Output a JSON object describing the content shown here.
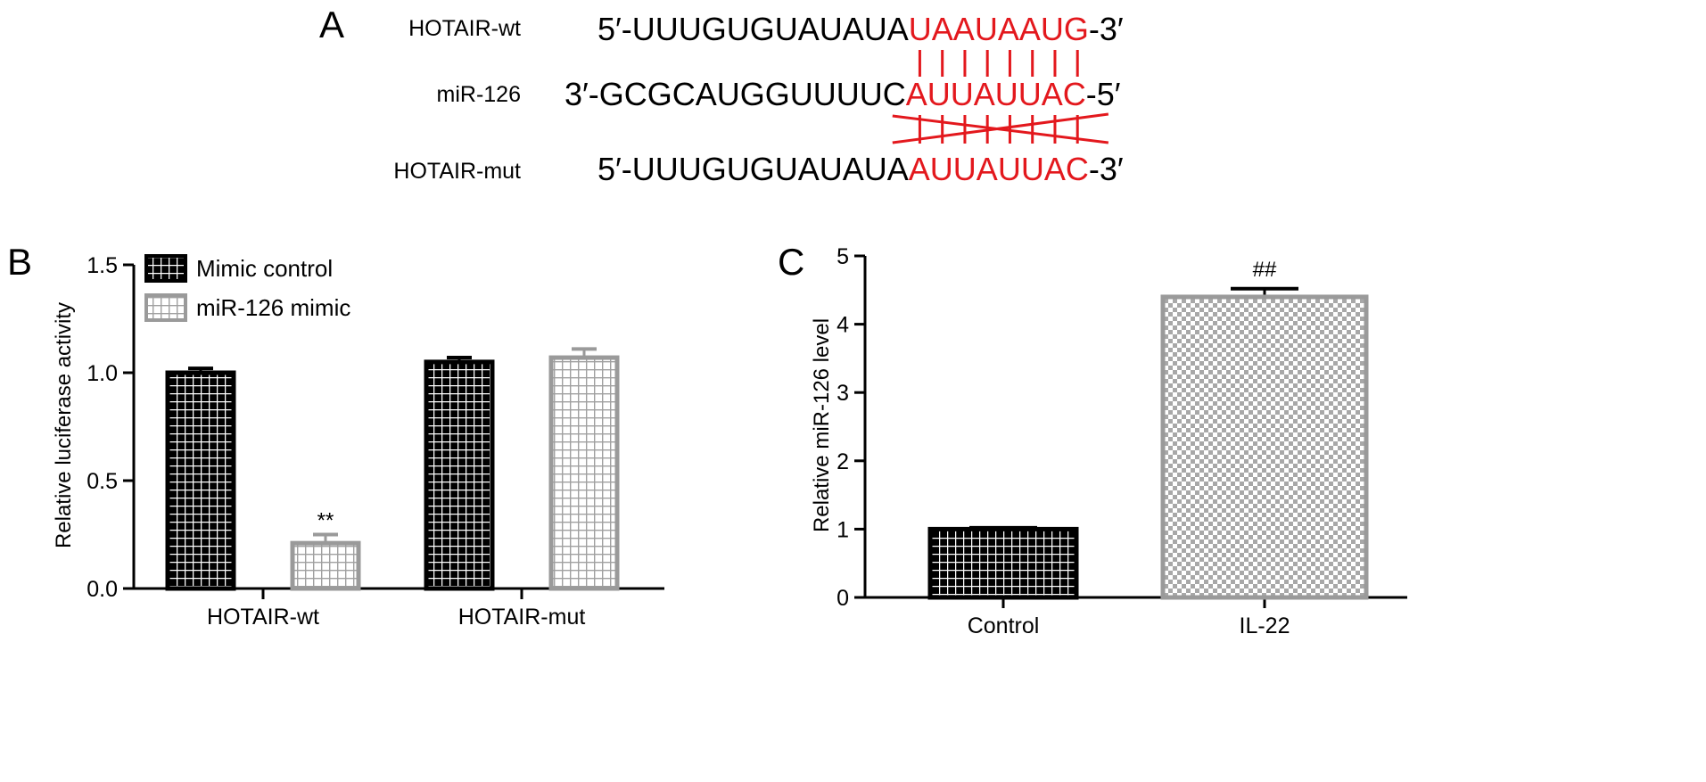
{
  "panel_a": {
    "letter": "A",
    "rows": [
      {
        "name": "HOTAIR-wt",
        "prefix": "5′-UUUGUGUAUAUA",
        "highlight": "UAAUAAUG",
        "suffix": "-3′"
      },
      {
        "name": "miR-126",
        "prefix": "3′-GCGCAUGGUUUUC",
        "highlight": "AUUAUUAC",
        "suffix": "-5′"
      },
      {
        "name": "HOTAIR-mut",
        "prefix": "5′-UUUGUGUAUAUA",
        "highlight": "AUUAUUAC",
        "suffix": "-3′"
      }
    ],
    "highlight_color": "#e3181d",
    "pair_lines": 8,
    "mut_crossed": true
  },
  "chart_data": [
    {
      "panel": "B",
      "type": "bar",
      "categories": [
        "HOTAIR-wt",
        "HOTAIR-mut"
      ],
      "series": [
        {
          "name": "Mimic control",
          "values": [
            1.0,
            1.05
          ],
          "errors": [
            0.02,
            0.02
          ],
          "color": "#000000",
          "pattern": "grid-white"
        },
        {
          "name": "miR-126 mimic",
          "values": [
            0.21,
            1.07
          ],
          "errors": [
            0.04,
            0.04
          ],
          "color": "#9a9a9a",
          "pattern": "grid-white"
        }
      ],
      "annotations": [
        {
          "category": "HOTAIR-wt",
          "series": "miR-126 mimic",
          "text": "**"
        }
      ],
      "ylabel": "Relative luciferase activity",
      "xlabel": "",
      "ylim": [
        0,
        1.5
      ],
      "yticks": [
        "0.0",
        "0.5",
        "1.0",
        "1.5"
      ],
      "legend": "top-left",
      "grid": false
    },
    {
      "panel": "C",
      "type": "bar",
      "categories": [
        "Control",
        "IL-22"
      ],
      "values": [
        1.0,
        4.4
      ],
      "errors": [
        0.02,
        0.12
      ],
      "colors": [
        "#000000",
        "#9a9a9a"
      ],
      "patterns": [
        "grid-white",
        "checker"
      ],
      "annotations": [
        {
          "category": "IL-22",
          "text": "##"
        }
      ],
      "ylabel": "Relative miR-126 level",
      "xlabel": "",
      "ylim": [
        0,
        5
      ],
      "yticks": [
        "0",
        "1",
        "2",
        "3",
        "4",
        "5"
      ],
      "grid": false
    }
  ]
}
